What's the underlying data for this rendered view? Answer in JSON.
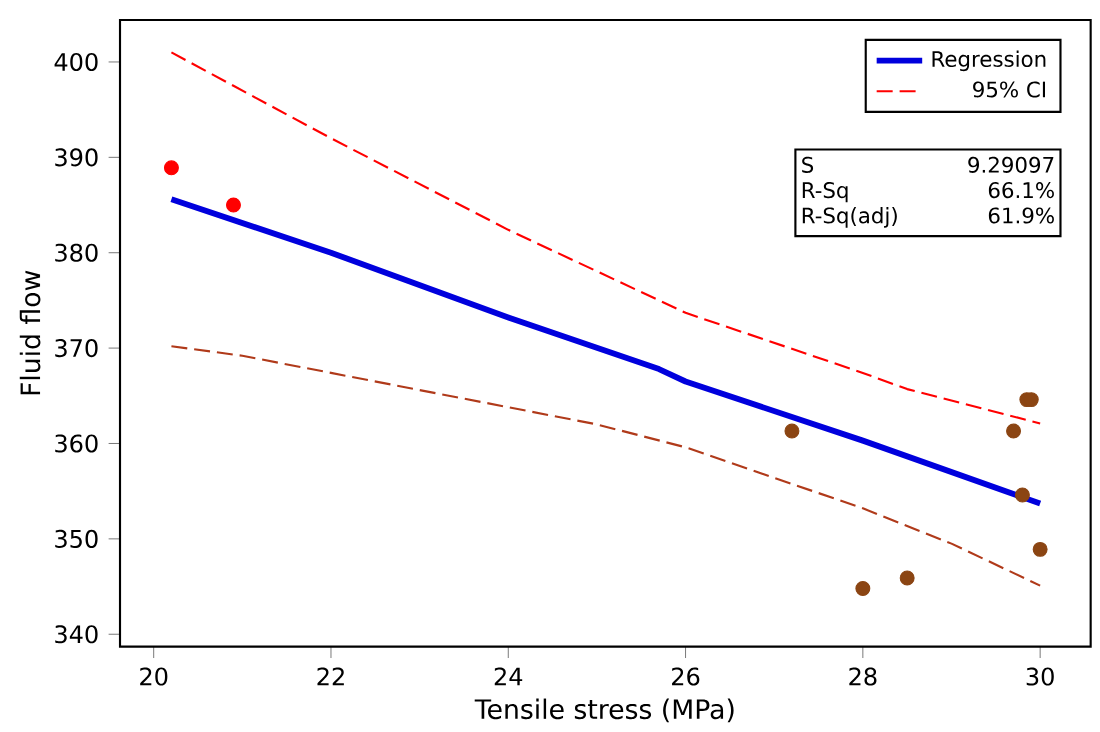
{
  "chart_data": {
    "type": "scatter",
    "xlabel": "Tensile stress (MPa)",
    "ylabel": "Fluid flow",
    "xlim": [
      19.62,
      30.57
    ],
    "ylim": [
      338.7,
      404.4
    ],
    "xticks": [
      20,
      22,
      24,
      26,
      28,
      30
    ],
    "yticks": [
      340,
      350,
      360,
      370,
      380,
      390,
      400
    ],
    "grid": false,
    "legend": "top right",
    "marker": "circle",
    "series": [
      {
        "x": [
          20.2,
          20.9,
          27.2,
          28.0,
          28.5,
          29.7,
          29.8,
          29.85,
          29.9,
          30.0
        ],
        "values": [
          388.9,
          385.0,
          361.3,
          344.8,
          345.9,
          361.3,
          354.6,
          364.6,
          364.6,
          348.9
        ],
        "colors": [
          "#ff0000",
          "#ff0000",
          "#8b4513",
          "#8b4513",
          "#8b4513",
          "#8b4513",
          "#8b4513",
          "#8b4513",
          "#8b4513",
          "#8b4513"
        ]
      },
      {
        "type": "line",
        "name": "Regression",
        "color": "#0000dd",
        "line_style": "solid",
        "marker": "none",
        "x": [
          20.2,
          22,
          24,
          25.7,
          26,
          28,
          30
        ],
        "values": [
          385.6,
          380.0,
          373.2,
          367.8,
          366.5,
          360.3,
          353.7
        ]
      },
      {
        "type": "line",
        "name": "95% CI",
        "color": "#ff0000",
        "line_style": "dashed",
        "marker": "none",
        "x": [
          20.2,
          20.9,
          22,
          24,
          26,
          28,
          28.5,
          30
        ],
        "values": [
          401.0,
          397.5,
          392.0,
          382.4,
          373.7,
          367.4,
          365.7,
          362.1
        ]
      },
      {
        "type": "line",
        "color": "#b03a1a",
        "line_style": "dashed",
        "marker": "none",
        "x": [
          20.2,
          21,
          22,
          24,
          25,
          26,
          27,
          28,
          29,
          30
        ],
        "values": [
          370.2,
          369.2,
          367.4,
          363.8,
          362.0,
          359.6,
          356.4,
          353.2,
          349.5,
          345.1
        ]
      }
    ],
    "annotations": [
      "S",
      "9.29097",
      "R-Sq",
      "66.1%",
      "R-Sq(adj)",
      "61.9%"
    ]
  }
}
